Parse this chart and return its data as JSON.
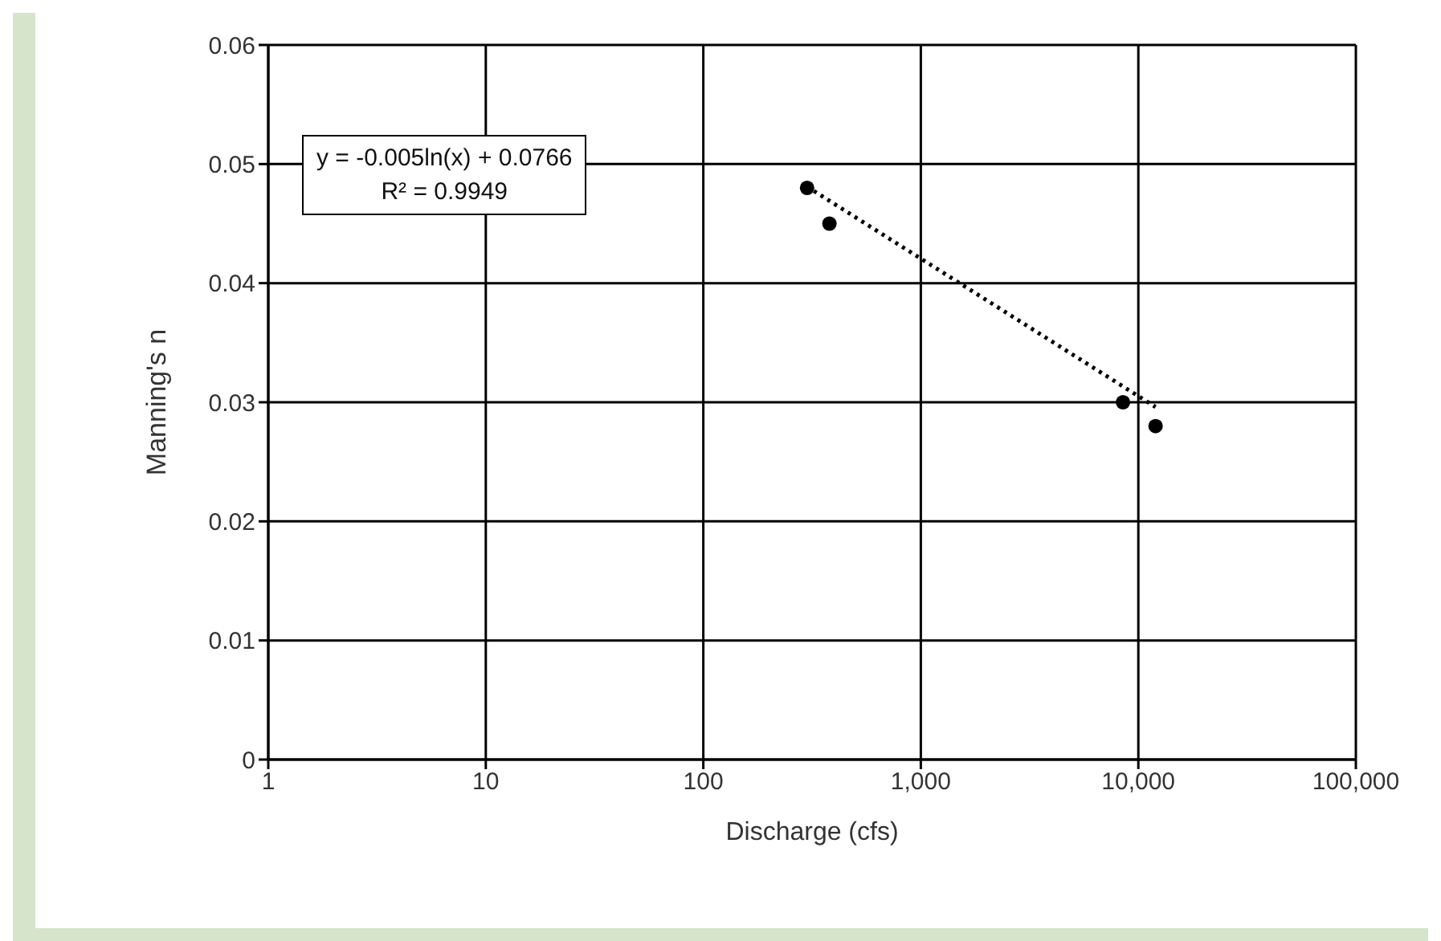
{
  "chart_data": {
    "type": "scatter",
    "xlabel": "Discharge (cfs)",
    "ylabel": "Manning's n",
    "log": "x",
    "grid": true,
    "marker": "circle",
    "annotations": [
      "y = -0.005ln(x) + 0.0766",
      "R² = 0.9949"
    ],
    "xlim": [
      1,
      100000
    ],
    "xticks": [
      1,
      10,
      100,
      {
        "value": 1000,
        "label": "1,000"
      },
      {
        "value": 10000,
        "label": "10,000"
      },
      {
        "value": 100000,
        "label": "100,000"
      }
    ],
    "ylim": [
      0,
      0.06
    ],
    "yticks": [
      0,
      0.01,
      0.02,
      0.03,
      0.04,
      0.05,
      0.06
    ],
    "series": [
      {
        "color": "#000000",
        "x": [
          300,
          380,
          8500,
          12000
        ],
        "values": [
          0.048,
          0.045,
          0.03,
          0.028
        ]
      },
      {
        "type": "line",
        "color": "#000000",
        "line_style": "dotted",
        "marker": "none",
        "x": [
          300,
          12000
        ],
        "values": [
          0.0481,
          0.0296
        ]
      }
    ]
  }
}
